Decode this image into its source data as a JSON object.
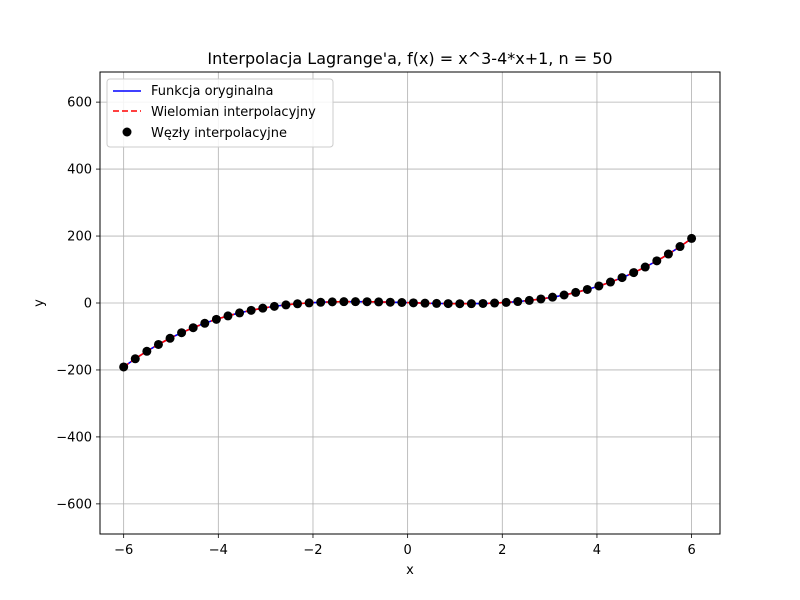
{
  "chart_data": {
    "type": "line",
    "title": "Interpolacja Lagrange'a, f(x) = x^3-4*x+1, n = 50",
    "xlabel": "x",
    "ylabel": "y",
    "xlim": [
      -6.5,
      6.6
    ],
    "ylim": [
      -690,
      690
    ],
    "xticks": [
      -6,
      -4,
      -2,
      0,
      2,
      4,
      6
    ],
    "xtick_labels": [
      "−6",
      "−4",
      "−2",
      "0",
      "2",
      "4",
      "6"
    ],
    "yticks": [
      -600,
      -400,
      -200,
      0,
      200,
      400,
      600
    ],
    "ytick_labels": [
      "−600",
      "−400",
      "−200",
      "0",
      "200",
      "400",
      "600"
    ],
    "grid": true,
    "legend_position": "top-left",
    "function": "x^3-4*x+1",
    "x_range": [
      -6,
      6
    ],
    "series": [
      {
        "name": "Funkcja oryginalna",
        "style": "solid-line",
        "color": "#0000ff"
      },
      {
        "name": "Wielomian interpolacyjny",
        "style": "dashed-line",
        "color": "#ff0000"
      },
      {
        "name": "Węzły interpolacyjne",
        "style": "markers",
        "color": "#000000",
        "x": [
          -6.0,
          -5.755,
          -5.51,
          -5.265,
          -5.02,
          -4.776,
          -4.531,
          -4.286,
          -4.041,
          -3.796,
          -3.551,
          -3.306,
          -3.061,
          -2.816,
          -2.571,
          -2.327,
          -2.082,
          -1.837,
          -1.592,
          -1.347,
          -1.102,
          -0.857,
          -0.612,
          -0.367,
          -0.122,
          0.122,
          0.367,
          0.612,
          0.857,
          1.102,
          1.347,
          1.592,
          1.837,
          2.082,
          2.327,
          2.571,
          2.816,
          3.061,
          3.306,
          3.551,
          3.796,
          4.041,
          4.286,
          4.531,
          4.776,
          5.02,
          5.265,
          5.51,
          5.755,
          6.0
        ],
        "y": [
          -191.0,
          -166.6,
          -144.2,
          -123.9,
          -105.4,
          -88.8,
          -73.9,
          -60.6,
          -48.8,
          -38.5,
          -29.6,
          -22.9,
          -16.4,
          -10.1,
          -5.7,
          -2.3,
          0.3,
          1.3,
          2.3,
          2.9,
          2.1,
          2.8,
          2.2,
          2.4,
          1.5,
          0.5,
          -0.4,
          -1.2,
          -1.8,
          -1.1,
          -0.2,
          0.6,
          2.8,
          5.7,
          4.3,
          8.7,
          12.1,
          17.4,
          23.9,
          31.2,
          40.5,
          51.8,
          62.5,
          77.9,
          91.9,
          108.4,
          126.6,
          147.3,
          168.6,
          193.0
        ]
      }
    ]
  }
}
